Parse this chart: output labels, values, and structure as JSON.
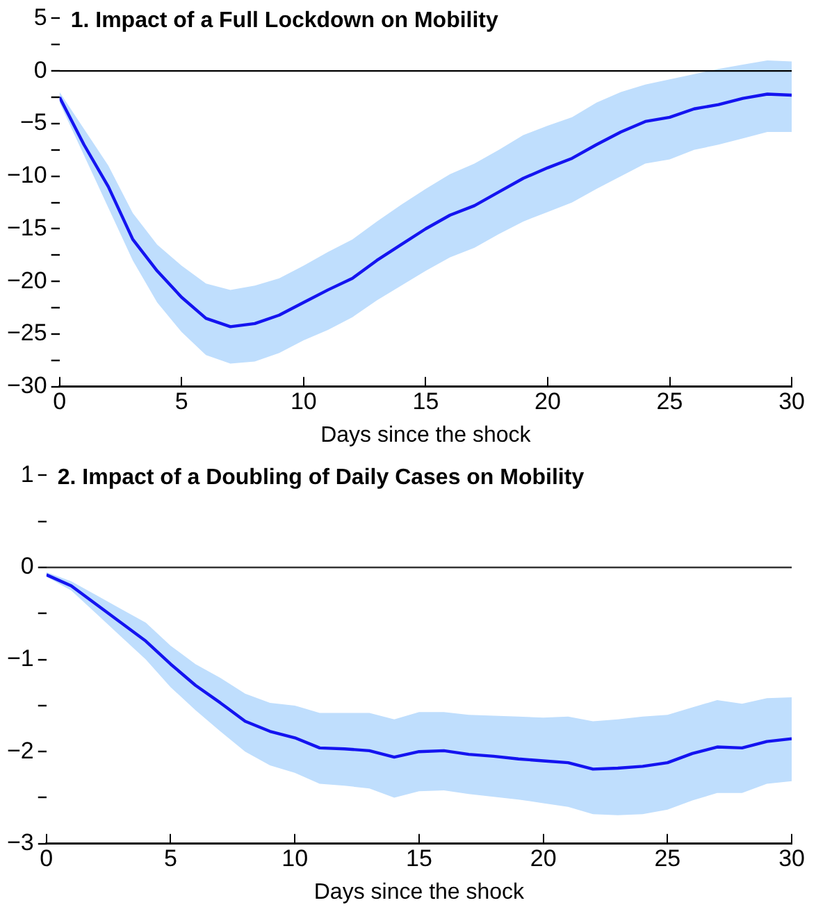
{
  "chart_data": [
    {
      "type": "line",
      "title": "1. Impact of a Full Lockdown on Mobility",
      "xlabel": "Days since the shock",
      "x": [
        0,
        1,
        2,
        3,
        4,
        5,
        6,
        7,
        8,
        9,
        10,
        11,
        12,
        13,
        14,
        15,
        16,
        17,
        18,
        19,
        20,
        21,
        22,
        23,
        24,
        25,
        26,
        27,
        28,
        29,
        30
      ],
      "series": [
        {
          "color": "#1414f0",
          "values": [
            -2.5,
            -7,
            -11,
            -16,
            -19,
            -21.5,
            -23.5,
            -24.3,
            -24,
            -23.2,
            -22,
            -20.8,
            -19.7,
            -18,
            -16.5,
            -15,
            -13.7,
            -12.8,
            -11.5,
            -10.2,
            -9.2,
            -8.3,
            -7,
            -5.8,
            -4.8,
            -4.4,
            -3.6,
            -3.2,
            -2.6,
            -2.2,
            -2.3
          ],
          "upper": [
            -2,
            -5.5,
            -9,
            -13.5,
            -16.5,
            -18.5,
            -20.2,
            -20.8,
            -20.4,
            -19.7,
            -18.5,
            -17.2,
            -16,
            -14.3,
            -12.7,
            -11.2,
            -9.8,
            -8.8,
            -7.5,
            -6.1,
            -5.2,
            -4.4,
            -3,
            -2,
            -1.3,
            -0.8,
            -0.3,
            0.2,
            0.6,
            1,
            0.9
          ],
          "lower": [
            -3,
            -8,
            -13,
            -18,
            -22,
            -24.8,
            -27,
            -27.8,
            -27.6,
            -26.8,
            -25.6,
            -24.6,
            -23.4,
            -21.8,
            -20.4,
            -19,
            -17.7,
            -16.8,
            -15.5,
            -14.3,
            -13.4,
            -12.5,
            -11.2,
            -10,
            -8.8,
            -8.4,
            -7.5,
            -7,
            -6.4,
            -5.8,
            -5.8
          ]
        }
      ],
      "xlim": [
        0,
        30
      ],
      "xticks": [
        0,
        5,
        10,
        15,
        20,
        25,
        30
      ],
      "ylim": [
        -30,
        5
      ],
      "yticks": [
        {
          "value": -30,
          "label": "−30"
        },
        {
          "value": -27.5,
          "label": null
        },
        {
          "value": -25,
          "label": "−25"
        },
        {
          "value": -22.5,
          "label": null
        },
        {
          "value": -20,
          "label": "−20"
        },
        {
          "value": -17.5,
          "label": null
        },
        {
          "value": -15,
          "label": "−15"
        },
        {
          "value": -12.5,
          "label": null
        },
        {
          "value": -10,
          "label": "−10"
        },
        {
          "value": -7.5,
          "label": null
        },
        {
          "value": -5,
          "label": "−5"
        },
        {
          "value": -2.5,
          "label": null
        },
        0,
        {
          "value": 2.5,
          "label": null
        },
        5
      ],
      "ref_lines": [
        {
          "axis": "y",
          "value": 0,
          "color": "#000000"
        }
      ],
      "grid": false,
      "legend": false,
      "marker": "none",
      "line_style": "solid"
    },
    {
      "type": "line",
      "title": "2. Impact of a Doubling of Daily Cases on Mobility",
      "xlabel": "Days since the shock",
      "x": [
        0,
        1,
        2,
        3,
        4,
        5,
        6,
        7,
        8,
        9,
        10,
        11,
        12,
        13,
        14,
        15,
        16,
        17,
        18,
        19,
        20,
        21,
        22,
        23,
        24,
        25,
        26,
        27,
        28,
        29,
        30
      ],
      "series": [
        {
          "color": "#1414f0",
          "values": [
            -0.08,
            -0.2,
            -0.4,
            -0.6,
            -0.8,
            -1.05,
            -1.28,
            -1.47,
            -1.67,
            -1.78,
            -1.85,
            -1.96,
            -1.97,
            -1.99,
            -2.06,
            -2,
            -1.99,
            -2.03,
            -2.05,
            -2.08,
            -2.1,
            -2.12,
            -2.19,
            -2.18,
            -2.16,
            -2.12,
            -2.02,
            -1.95,
            -1.96,
            -1.89,
            -1.86
          ],
          "upper": [
            -0.05,
            -0.15,
            -0.3,
            -0.45,
            -0.6,
            -0.85,
            -1.05,
            -1.2,
            -1.37,
            -1.47,
            -1.5,
            -1.58,
            -1.58,
            -1.58,
            -1.65,
            -1.57,
            -1.57,
            -1.6,
            -1.61,
            -1.62,
            -1.63,
            -1.62,
            -1.67,
            -1.65,
            -1.62,
            -1.6,
            -1.52,
            -1.44,
            -1.48,
            -1.42,
            -1.41
          ],
          "lower": [
            -0.1,
            -0.25,
            -0.5,
            -0.75,
            -1,
            -1.3,
            -1.55,
            -1.78,
            -2,
            -2.15,
            -2.23,
            -2.35,
            -2.37,
            -2.4,
            -2.5,
            -2.43,
            -2.42,
            -2.46,
            -2.49,
            -2.52,
            -2.56,
            -2.6,
            -2.68,
            -2.69,
            -2.68,
            -2.63,
            -2.53,
            -2.45,
            -2.45,
            -2.35,
            -2.32
          ]
        }
      ],
      "xlim": [
        0,
        30
      ],
      "xticks": [
        0,
        5,
        10,
        15,
        20,
        25,
        30
      ],
      "ylim": [
        -3,
        1
      ],
      "yticks": [
        {
          "value": -3,
          "label": "−3"
        },
        {
          "value": -2.5,
          "label": null
        },
        {
          "value": -2,
          "label": "−2"
        },
        {
          "value": -1.5,
          "label": null
        },
        {
          "value": -1,
          "label": "−1"
        },
        {
          "value": -0.5,
          "label": null
        },
        0,
        {
          "value": 0.5,
          "label": null
        },
        1
      ],
      "ref_lines": [
        {
          "axis": "y",
          "value": 0,
          "color": "#333333"
        }
      ],
      "grid": false,
      "legend": false,
      "marker": "none",
      "line_style": "solid"
    }
  ]
}
